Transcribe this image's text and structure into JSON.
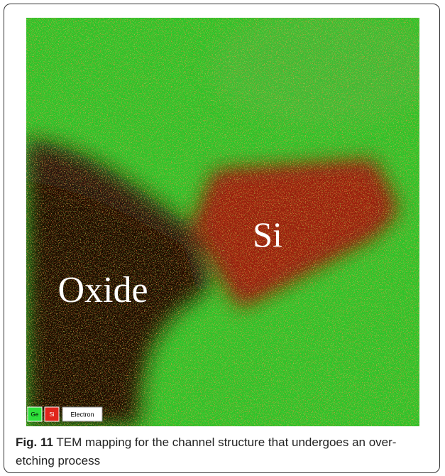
{
  "figure": {
    "labels": [
      "Si",
      "Oxide"
    ],
    "legend": [
      "Ge",
      "Si",
      "Electron"
    ],
    "caption": {
      "label": "Fig. 11",
      "text": "TEM mapping for the channel structure that undergoes an over-etching process"
    }
  }
}
